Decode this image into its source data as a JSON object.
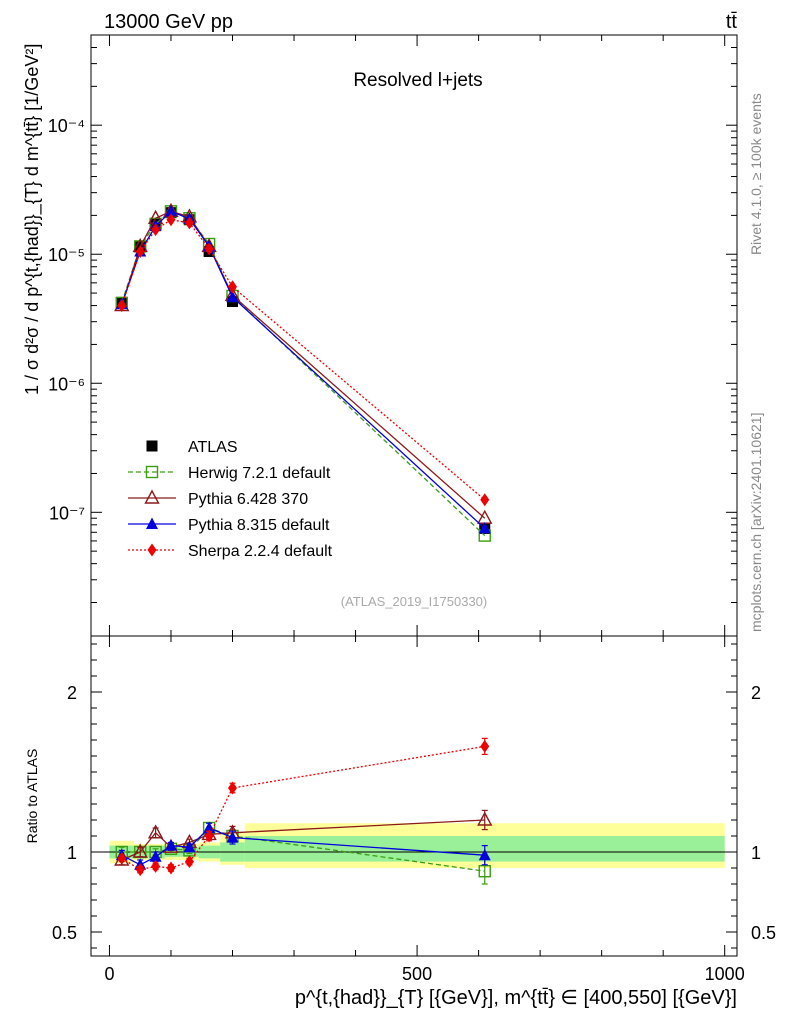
{
  "header": {
    "energy_label": "13000 GeV pp",
    "process_label": "tt̄"
  },
  "side_labels": {
    "rivet": "Rivet 4.1.0, ≥ 100k events",
    "mcplots": "mcplots.cern.ch [arXiv:2401.10621]"
  },
  "chart_data": [
    {
      "type": "line",
      "scale": "log",
      "title": "Resolved l+jets",
      "watermark": "(ATLAS_2019_I1750330)",
      "ylabel": "1 / σ d²σ / d p^{t,{had}}_{T} d m^{tt̄} [1/GeV²]",
      "xlim": [
        -30,
        1020
      ],
      "ylim": [
        1.1e-08,
        0.0005
      ],
      "yticks": [
        {
          "value": 1e-07,
          "label": "10⁻⁷"
        },
        {
          "value": 1e-06,
          "label": "10⁻⁶"
        },
        {
          "value": 1e-05,
          "label": "10⁻⁵"
        },
        {
          "value": 0.0001,
          "label": "10⁻⁴"
        }
      ],
      "x": [
        20,
        50,
        75,
        100,
        130,
        162,
        200,
        610
      ],
      "legend": [
        {
          "key": "atlas",
          "label": "ATLAS"
        },
        {
          "key": "herwig",
          "label": "Herwig 7.2.1 default"
        },
        {
          "key": "pythia6",
          "label": "Pythia 6.428 370"
        },
        {
          "key": "pythia8",
          "label": "Pythia 8.315 default"
        },
        {
          "key": "sherpa",
          "label": "Sherpa 2.2.4 default"
        }
      ],
      "series": [
        {
          "key": "atlas",
          "name": "ATLAS",
          "color": "#000000",
          "marker": "square",
          "line": "none",
          "values": [
            4.2e-06,
            1.15e-05,
            1.7e-05,
            2.1e-05,
            1.85e-05,
            1.05e-05,
            4.3e-06,
            7.5e-08
          ]
        },
        {
          "key": "herwig",
          "name": "Herwig 7.2.1 default",
          "color": "#3a9d0f",
          "marker": "square-open",
          "line": "dashed",
          "values": [
            4.2e-06,
            1.15e-05,
            1.72e-05,
            2.15e-05,
            1.9e-05,
            1.2e-05,
            4.75e-06,
            6.6e-08
          ]
        },
        {
          "key": "pythia6",
          "name": "Pythia 6.428 370",
          "color": "#8b1a1a",
          "marker": "triangle-open",
          "line": "solid",
          "values": [
            4e-06,
            1.15e-05,
            1.9e-05,
            2.15e-05,
            1.95e-05,
            1.15e-05,
            4.8e-06,
            9e-08
          ]
        },
        {
          "key": "pythia8",
          "name": "Pythia 8.315 default",
          "color": "#0000dd",
          "marker": "triangle",
          "line": "solid",
          "values": [
            4.1e-06,
            1.05e-05,
            1.65e-05,
            2.15e-05,
            1.88e-05,
            1.15e-05,
            4.65e-06,
            7.5e-08
          ]
        },
        {
          "key": "sherpa",
          "name": "Sherpa 2.2.4 default",
          "color": "#ee0000",
          "marker": "diamond",
          "line": "dotted",
          "values": [
            4e-06,
            1.05e-05,
            1.55e-05,
            1.85e-05,
            1.75e-05,
            1.1e-05,
            5.6e-06,
            1.25e-07
          ]
        }
      ]
    },
    {
      "type": "line",
      "ylabel": "Ratio to ATLAS",
      "xlabel": "p^{t,{had}}_{T} [{GeV}], m^{tt̄} ∈ [400,550] [{GeV}]",
      "xlim": [
        -30,
        1020
      ],
      "ylim": [
        0.35,
        2.35
      ],
      "xticks": [
        {
          "value": 0,
          "label": "0"
        },
        {
          "value": 500,
          "label": "500"
        },
        {
          "value": 1000,
          "label": "1000"
        }
      ],
      "yticks": [
        {
          "value": 0.5,
          "label": "0.5"
        },
        {
          "value": 1,
          "label": "1"
        },
        {
          "value": 2,
          "label": "2"
        }
      ],
      "x": [
        20,
        50,
        75,
        100,
        130,
        162,
        200,
        610
      ],
      "uncertainty_bands": {
        "bins": [
          {
            "lo": 0,
            "hi": 40,
            "inner": [
              0.96,
              1.04
            ],
            "outer": [
              0.93,
              1.07
            ]
          },
          {
            "lo": 40,
            "hi": 60,
            "inner": [
              0.96,
              1.04
            ],
            "outer": [
              0.95,
              1.05
            ]
          },
          {
            "lo": 60,
            "hi": 90,
            "inner": [
              0.96,
              1.04
            ],
            "outer": [
              0.95,
              1.05
            ]
          },
          {
            "lo": 90,
            "hi": 115,
            "inner": [
              0.97,
              1.03
            ],
            "outer": [
              0.95,
              1.05
            ]
          },
          {
            "lo": 115,
            "hi": 145,
            "inner": [
              0.97,
              1.03
            ],
            "outer": [
              0.95,
              1.05
            ]
          },
          {
            "lo": 145,
            "hi": 180,
            "inner": [
              0.96,
              1.04
            ],
            "outer": [
              0.94,
              1.06
            ]
          },
          {
            "lo": 180,
            "hi": 220,
            "inner": [
              0.94,
              1.06
            ],
            "outer": [
              0.92,
              1.12
            ]
          },
          {
            "lo": 220,
            "hi": 1000,
            "inner": [
              0.94,
              1.1
            ],
            "outer": [
              0.9,
              1.18
            ]
          }
        ]
      },
      "series": [
        {
          "key": "herwig",
          "name": "Herwig 7.2.1 default",
          "color": "#3a9d0f",
          "marker": "square-open",
          "line": "dashed",
          "values": [
            1.0,
            1.0,
            1.0,
            1.02,
            1.01,
            1.15,
            1.1,
            0.88
          ],
          "errors": [
            0.03,
            0.03,
            0.02,
            0.02,
            0.02,
            0.03,
            0.04,
            0.08
          ]
        },
        {
          "key": "pythia6",
          "name": "Pythia 6.428 370",
          "color": "#8b1a1a",
          "marker": "triangle-open",
          "line": "solid",
          "values": [
            0.95,
            1.0,
            1.12,
            1.03,
            1.06,
            1.11,
            1.12,
            1.2
          ],
          "errors": [
            0.03,
            0.03,
            0.03,
            0.02,
            0.02,
            0.03,
            0.04,
            0.06
          ]
        },
        {
          "key": "pythia8",
          "name": "Pythia 8.315 default",
          "color": "#0000dd",
          "marker": "triangle",
          "line": "solid",
          "values": [
            0.98,
            0.92,
            0.97,
            1.04,
            1.03,
            1.15,
            1.09,
            0.98
          ],
          "errors": [
            0.03,
            0.03,
            0.03,
            0.02,
            0.02,
            0.03,
            0.04,
            0.06
          ]
        },
        {
          "key": "sherpa",
          "name": "Sherpa 2.2.4 default",
          "color": "#ee0000",
          "marker": "diamond",
          "line": "dotted",
          "values": [
            0.96,
            0.89,
            0.91,
            0.9,
            0.94,
            1.1,
            1.4,
            1.66
          ],
          "errors": [
            0.02,
            0.02,
            0.02,
            0.02,
            0.02,
            0.03,
            0.03,
            0.05
          ]
        }
      ]
    }
  ]
}
